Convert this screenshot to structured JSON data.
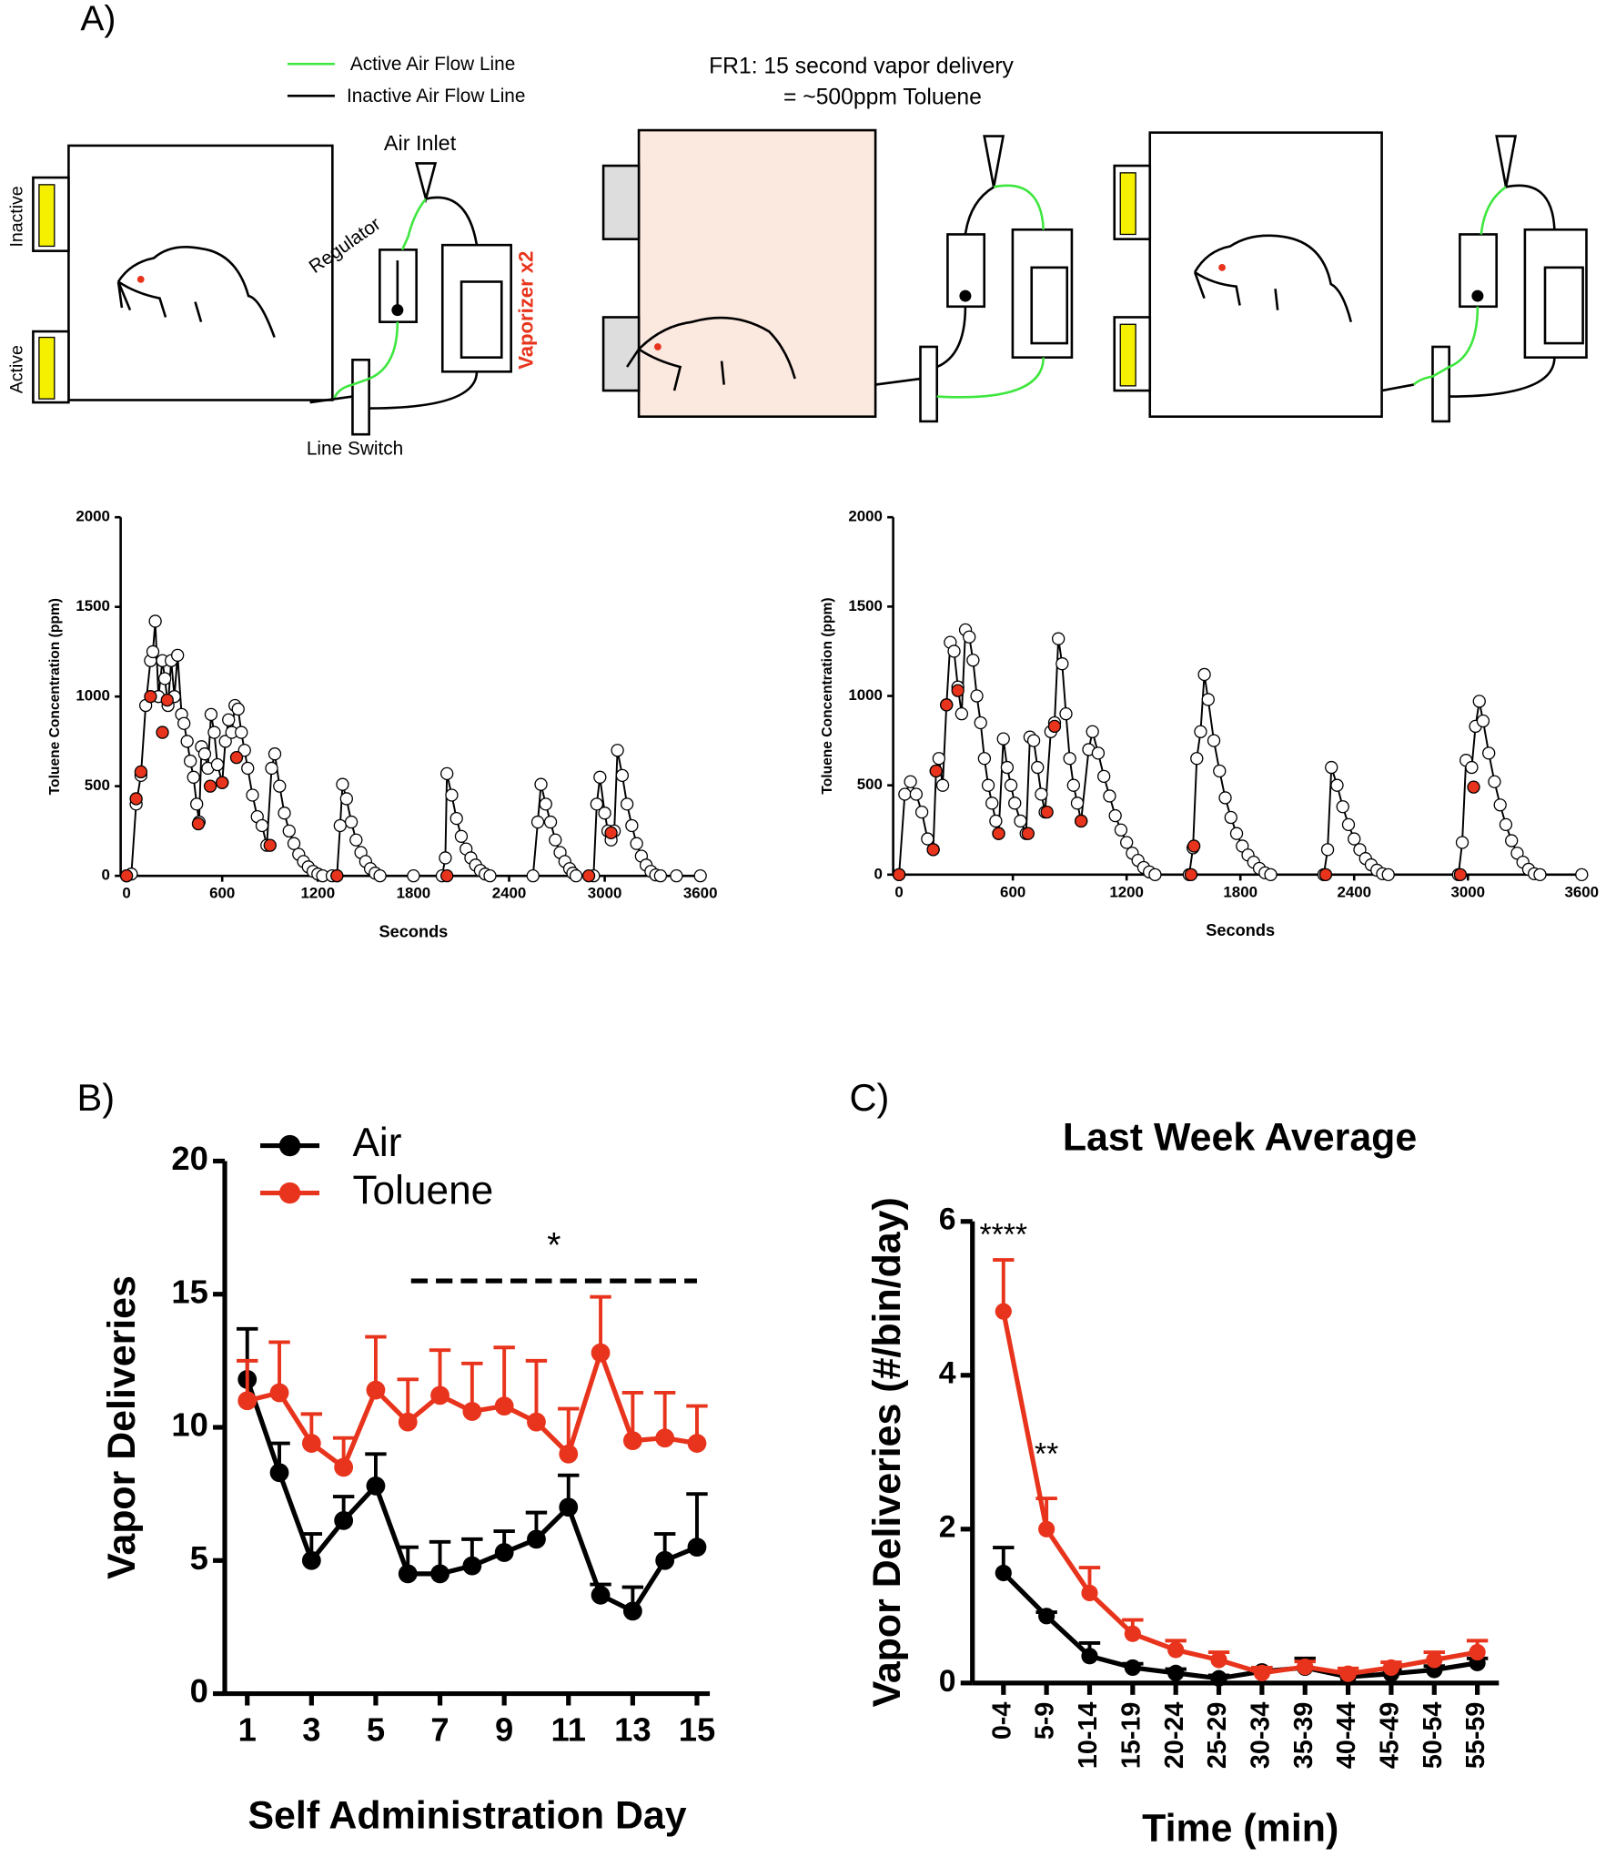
{
  "panel_a": {
    "label": "A)",
    "legend": [
      "Active Air Flow Line",
      "Inactive Air Flow Line"
    ],
    "note": [
      "FR1: 15 second vapor delivery",
      "= ~500ppm Toluene"
    ],
    "labels": {
      "air_inlet": "Air Inlet",
      "regulator": "Regulator",
      "vaporizer": "Vaporizer x2",
      "line_switch": "Line Switch",
      "inactive": "Inactive",
      "active": "Active"
    }
  },
  "chart_data": [
    {
      "type": "line",
      "y_label": "Toluene Concentration (ppm)",
      "x_label": "Seconds",
      "xlim": [
        0,
        3600
      ],
      "xticks": [
        0,
        600,
        1200,
        1800,
        2400,
        3000,
        3600
      ],
      "ylim": [
        0,
        2000
      ],
      "yticks": [
        0,
        500,
        1000,
        1500,
        2000
      ],
      "series": [
        {
          "color": "#ffffff",
          "line_color": "#000000",
          "x": [
            0,
            30,
            60,
            90,
            120,
            150,
            165,
            180,
            200,
            225,
            240,
            260,
            280,
            300,
            320,
            345,
            360,
            380,
            400,
            420,
            440,
            455,
            470,
            490,
            510,
            530,
            550,
            570,
            600,
            620,
            640,
            660,
            680,
            700,
            720,
            740,
            760,
            790,
            820,
            850,
            880,
            910,
            930,
            960,
            990,
            1020,
            1050,
            1080,
            1110,
            1140,
            1170,
            1200,
            1230,
            1290,
            1320,
            1340,
            1355,
            1380,
            1410,
            1440,
            1470,
            1500,
            1530,
            1560,
            1590,
            1800,
            1980,
            2000,
            2010,
            2040,
            2070,
            2100,
            2130,
            2160,
            2190,
            2220,
            2250,
            2280,
            2550,
            2580,
            2600,
            2630,
            2660,
            2690,
            2720,
            2750,
            2780,
            2800,
            2820,
            2930,
            2950,
            2970,
            3000,
            3020,
            3040,
            3060,
            3080,
            3110,
            3140,
            3170,
            3200,
            3230,
            3260,
            3290,
            3320,
            3350,
            3450,
            3600
          ],
          "values": [
            0,
            10,
            400,
            560,
            950,
            1200,
            1250,
            1420,
            1000,
            1200,
            1100,
            950,
            1200,
            1000,
            1230,
            900,
            850,
            750,
            640,
            550,
            400,
            300,
            720,
            680,
            600,
            900,
            800,
            620,
            520,
            750,
            870,
            800,
            950,
            930,
            800,
            700,
            600,
            450,
            330,
            280,
            170,
            600,
            680,
            500,
            350,
            250,
            180,
            120,
            80,
            50,
            25,
            10,
            0,
            0,
            0,
            280,
            510,
            430,
            300,
            200,
            130,
            80,
            40,
            15,
            0,
            0,
            0,
            100,
            570,
            450,
            320,
            220,
            150,
            100,
            60,
            30,
            10,
            0,
            0,
            300,
            510,
            400,
            300,
            200,
            130,
            80,
            40,
            15,
            0,
            0,
            400,
            550,
            350,
            250,
            200,
            250,
            700,
            560,
            400,
            280,
            180,
            110,
            60,
            25,
            5,
            0,
            0,
            0
          ]
        },
        {
          "color": "#e8341c",
          "mode": "markers",
          "x": [
            0,
            60,
            90,
            150,
            225,
            255,
            450,
            525,
            600,
            690,
            900,
            1320,
            2010,
            2900,
            3040
          ],
          "values": [
            0,
            430,
            580,
            1000,
            800,
            980,
            290,
            500,
            520,
            660,
            170,
            0,
            0,
            0,
            240
          ]
        }
      ]
    },
    {
      "type": "line",
      "y_label": "Toluene Concentration (ppm)",
      "x_label": "Seconds",
      "xlim": [
        0,
        3600
      ],
      "xticks": [
        0,
        600,
        1200,
        1800,
        2400,
        3000,
        3600
      ],
      "ylim": [
        0,
        2000
      ],
      "yticks": [
        0,
        500,
        1000,
        1500,
        2000
      ],
      "series": [
        {
          "color": "#ffffff",
          "line_color": "#000000",
          "x": [
            0,
            30,
            60,
            90,
            120,
            150,
            180,
            195,
            210,
            230,
            250,
            270,
            290,
            310,
            330,
            350,
            370,
            390,
            410,
            430,
            450,
            470,
            490,
            510,
            525,
            550,
            570,
            590,
            610,
            640,
            670,
            690,
            710,
            730,
            750,
            770,
            800,
            820,
            840,
            860,
            880,
            900,
            920,
            940,
            960,
            1000,
            1020,
            1050,
            1080,
            1110,
            1140,
            1170,
            1200,
            1230,
            1260,
            1290,
            1320,
            1350,
            1530,
            1550,
            1570,
            1590,
            1610,
            1630,
            1660,
            1690,
            1720,
            1750,
            1780,
            1810,
            1840,
            1870,
            1900,
            1930,
            1960,
            2240,
            2260,
            2280,
            2310,
            2340,
            2370,
            2400,
            2430,
            2460,
            2490,
            2520,
            2550,
            2580,
            2950,
            2970,
            2990,
            3020,
            3040,
            3060,
            3080,
            3110,
            3140,
            3170,
            3200,
            3230,
            3260,
            3290,
            3320,
            3350,
            3380,
            3600
          ],
          "values": [
            0,
            450,
            520,
            450,
            350,
            200,
            140,
            580,
            650,
            500,
            950,
            1300,
            1250,
            1050,
            900,
            1370,
            1330,
            1200,
            1000,
            850,
            650,
            500,
            400,
            300,
            230,
            760,
            600,
            500,
            400,
            300,
            230,
            770,
            750,
            600,
            450,
            350,
            800,
            850,
            1320,
            1180,
            900,
            650,
            500,
            400,
            300,
            700,
            800,
            680,
            550,
            440,
            330,
            250,
            180,
            120,
            80,
            40,
            15,
            0,
            0,
            150,
            650,
            800,
            1120,
            980,
            750,
            580,
            430,
            320,
            230,
            160,
            110,
            70,
            35,
            10,
            0,
            0,
            140,
            600,
            500,
            380,
            280,
            200,
            140,
            90,
            55,
            25,
            5,
            0,
            0,
            180,
            640,
            600,
            830,
            970,
            860,
            680,
            520,
            390,
            280,
            190,
            120,
            70,
            30,
            5,
            0,
            0
          ]
        },
        {
          "color": "#e8341c",
          "mode": "markers",
          "x": [
            0,
            180,
            195,
            250,
            310,
            525,
            680,
            780,
            820,
            960,
            1540,
            1555,
            2250,
            2960,
            3030
          ],
          "values": [
            0,
            140,
            580,
            950,
            1030,
            230,
            230,
            350,
            830,
            300,
            0,
            160,
            0,
            0,
            490
          ]
        }
      ]
    },
    {
      "type": "errorline",
      "panel": "B)",
      "y_label": "Vapor Deliveries",
      "x_label": "Self Administration Day",
      "x": [
        1,
        2,
        3,
        4,
        5,
        6,
        7,
        8,
        9,
        10,
        11,
        12,
        13,
        14,
        15
      ],
      "xlim": [
        0.3,
        15.4
      ],
      "xticks": [
        1,
        3,
        5,
        7,
        9,
        11,
        13,
        15
      ],
      "ylim": [
        0,
        20
      ],
      "yticks": [
        0,
        5,
        10,
        15,
        20
      ],
      "legend": "upper left",
      "series": [
        {
          "name": "Air",
          "color": "#000000",
          "values": [
            11.8,
            8.3,
            5.0,
            6.5,
            7.8,
            4.5,
            4.5,
            4.8,
            5.3,
            5.8,
            7.0,
            3.7,
            3.1,
            5.0,
            5.5
          ],
          "errors": [
            1.9,
            1.1,
            1.0,
            0.9,
            1.2,
            1.0,
            1.2,
            1.0,
            0.8,
            1.0,
            1.2,
            0.4,
            0.9,
            1.0,
            2.0
          ]
        },
        {
          "name": "Toluene",
          "color": "#e8341c",
          "values": [
            11.0,
            11.3,
            9.4,
            8.5,
            11.4,
            10.2,
            11.2,
            10.6,
            10.8,
            10.2,
            9.0,
            12.8,
            9.5,
            9.6,
            9.4
          ],
          "errors": [
            1.5,
            1.9,
            1.1,
            1.1,
            2.0,
            1.6,
            1.7,
            1.8,
            2.2,
            2.3,
            1.7,
            2.1,
            1.8,
            1.7,
            1.4
          ]
        }
      ],
      "annotations": [
        {
          "text": "*",
          "x": [
            6.1,
            15
          ],
          "y": 15.5
        }
      ]
    },
    {
      "type": "errorline",
      "panel": "C)",
      "title": "Last Week Average",
      "y_label": "Vapor Deliveries (#/bin/day)",
      "x_label": "Time (min)",
      "categories": [
        "0-4",
        "5-9",
        "10-14",
        "15-19",
        "20-24",
        "25-29",
        "30-34",
        "35-39",
        "40-44",
        "45-49",
        "50-54",
        "55-59"
      ],
      "ylim": [
        0,
        6
      ],
      "yticks": [
        0,
        2,
        4,
        6
      ],
      "series": [
        {
          "color": "#000000",
          "values": [
            1.43,
            0.87,
            0.35,
            0.2,
            0.13,
            0.06,
            0.15,
            0.2,
            0.08,
            0.12,
            0.17,
            0.26
          ],
          "errors": [
            0.33,
            0.05,
            0.17,
            0.05,
            0.05,
            0.04,
            0.05,
            0.12,
            0.05,
            0.05,
            0.05,
            0.06
          ]
        },
        {
          "color": "#e8341c",
          "values": [
            4.83,
            2.0,
            1.17,
            0.64,
            0.43,
            0.3,
            0.13,
            0.21,
            0.12,
            0.2,
            0.3,
            0.4
          ],
          "errors": [
            0.67,
            0.4,
            0.33,
            0.18,
            0.12,
            0.1,
            0.07,
            0.07,
            0.07,
            0.07,
            0.1,
            0.15
          ]
        }
      ],
      "annotations": [
        {
          "text": "****",
          "category": "0-4",
          "y": 5.8
        },
        {
          "text": "**",
          "category": "5-9",
          "y": 2.95
        }
      ]
    }
  ]
}
